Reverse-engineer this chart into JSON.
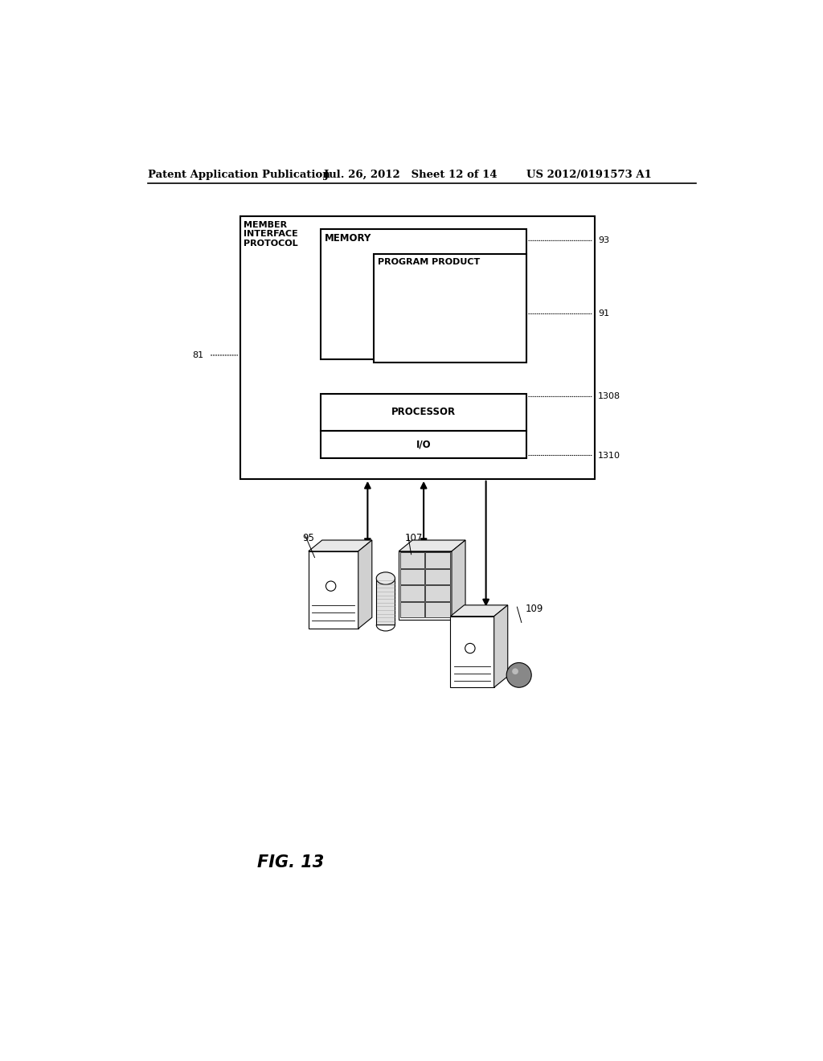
{
  "header_left": "Patent Application Publication",
  "header_mid": "Jul. 26, 2012   Sheet 12 of 14",
  "header_right": "US 2012/0191573 A1",
  "fig_label": "FIG. 13",
  "bg_color": "#ffffff",
  "line_color": "#000000",
  "light_gray": "#cccccc",
  "mid_gray": "#aaaaaa",
  "dark_gray": "#888888"
}
